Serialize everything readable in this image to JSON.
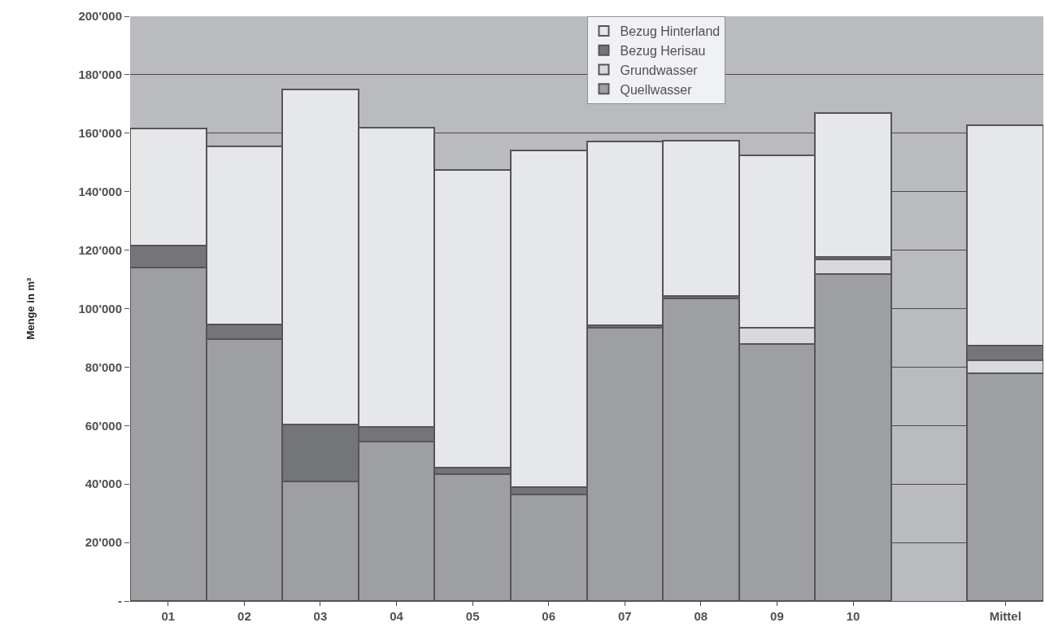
{
  "chart_data": {
    "type": "bar",
    "stacked": true,
    "ylabel": "Menge in m³",
    "categories": [
      "01",
      "02",
      "03",
      "04",
      "05",
      "06",
      "07",
      "08",
      "09",
      "10",
      null,
      "Mittel"
    ],
    "series": [
      {
        "name": "Quellwasser",
        "color": "#9e9fa3",
        "values": [
          114000,
          89500,
          41000,
          54500,
          43500,
          36500,
          93500,
          103500,
          88000,
          111800,
          null,
          77800
        ]
      },
      {
        "name": "Grundwasser",
        "color": "#d8d9db",
        "values": [
          0,
          0,
          0,
          0,
          0,
          0,
          0,
          0,
          5500,
          5000,
          null,
          4500
        ]
      },
      {
        "name": "Bezug Herisau",
        "color": "#747579",
        "values": [
          7500,
          5000,
          19500,
          5000,
          2000,
          2500,
          700,
          700,
          0,
          1000,
          null,
          5000
        ]
      },
      {
        "name": "Bezug Hinterland",
        "color": "#e6e7e9",
        "values": [
          40000,
          61000,
          114500,
          102500,
          102000,
          115000,
          63000,
          53300,
          59000,
          49200,
          null,
          75500
        ]
      }
    ],
    "ylim": [
      0,
      200000
    ],
    "yticks": [
      {
        "value": 0,
        "label": "-"
      },
      {
        "value": 20000,
        "label": "20'000"
      },
      {
        "value": 40000,
        "label": "40'000"
      },
      {
        "value": 60000,
        "label": "60'000"
      },
      {
        "value": 80000,
        "label": "80'000"
      },
      {
        "value": 100000,
        "label": "100'000"
      },
      {
        "value": 120000,
        "label": "120'000"
      },
      {
        "value": 140000,
        "label": "140'000"
      },
      {
        "value": 160000,
        "label": "160'000"
      },
      {
        "value": 180000,
        "label": "180'000"
      },
      {
        "value": 200000,
        "label": "200'000"
      }
    ],
    "grid": "y",
    "legend": "top"
  }
}
